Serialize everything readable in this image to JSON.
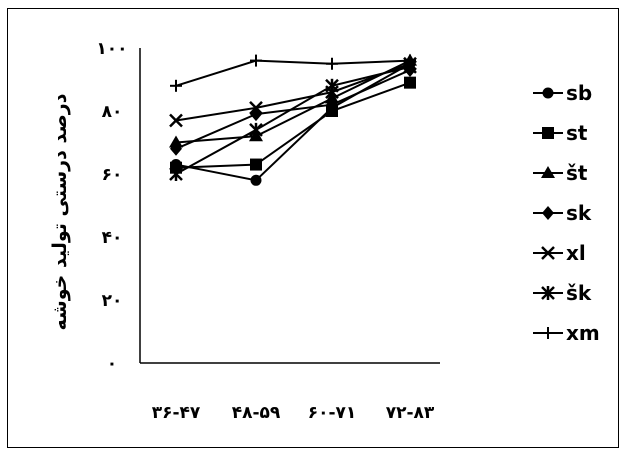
{
  "chart_data": {
    "type": "line",
    "title": "",
    "xlabel": "",
    "ylabel": "درصد درستی تولید خوشه",
    "categories": [
      "۳۶-۴۷",
      "۴۸-۵۹",
      "۶۰-۷۱",
      "۷۲-۸۳"
    ],
    "yticks": [
      "۰",
      "۲۰",
      "۴۰",
      "۶۰",
      "۸۰",
      "۱۰۰"
    ],
    "ylim": [
      0,
      100
    ],
    "grid": false,
    "legend_position": "right",
    "series": [
      {
        "name": "sb",
        "marker": "circle",
        "values": [
          63,
          58,
          81,
          95
        ]
      },
      {
        "name": "st",
        "marker": "square",
        "values": [
          62,
          63,
          80,
          89
        ]
      },
      {
        "name": "št",
        "marker": "triangle",
        "values": [
          70,
          72,
          84,
          96
        ]
      },
      {
        "name": "sk",
        "marker": "diamond",
        "values": [
          68,
          79,
          82,
          93
        ]
      },
      {
        "name": "xl",
        "marker": "x",
        "values": [
          77,
          81,
          86,
          95
        ]
      },
      {
        "name": "šk",
        "marker": "star",
        "values": [
          60,
          74,
          88,
          94
        ]
      },
      {
        "name": "xm",
        "marker": "plus",
        "values": [
          88,
          96,
          95,
          96
        ]
      }
    ]
  }
}
